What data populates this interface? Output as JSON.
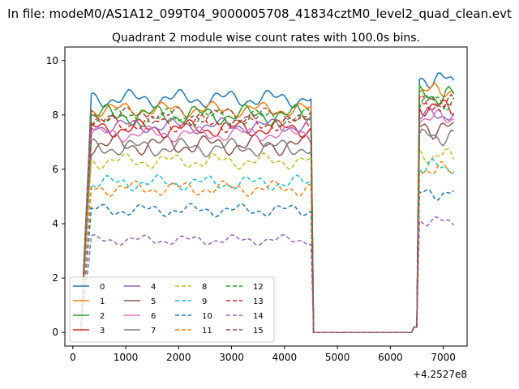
{
  "suptitle": "In file: modeM0/AS1A12_099T04_9000005708_41834cztM0_level2_quad_clean.evt",
  "chart_data": {
    "type": "line",
    "title": "Quadrant 2 module wise count rates with 100.0s bins.",
    "xlabel": "",
    "ylabel": "",
    "x_offset_label": "+4.2527e8",
    "xlim": [
      -150,
      7450
    ],
    "ylim": [
      -0.5,
      10.5
    ],
    "xticks": [
      0,
      1000,
      2000,
      3000,
      4000,
      5000,
      6000,
      7000
    ],
    "yticks": [
      0,
      2,
      4,
      6,
      8,
      10
    ],
    "grid": false,
    "legend": {
      "placement": "lower-left",
      "columns": 4
    },
    "shape": {
      "x_start": 150,
      "rise_end": 300,
      "high1_start": 350,
      "high1_end": 4500,
      "drop_end": 4650,
      "zero_end": 6400,
      "rise2_end": 6550,
      "high2_start": 6550,
      "x_end": 7200,
      "step": 50
    },
    "series": [
      {
        "name": "0",
        "color": "#1f77b4",
        "dashed": false,
        "level1": 8.6,
        "level2": 9.3,
        "amp": 0.35
      },
      {
        "name": "1",
        "color": "#ff7f0e",
        "dashed": false,
        "level1": 8.2,
        "level2": 8.9,
        "amp": 0.3
      },
      {
        "name": "2",
        "color": "#2ca02c",
        "dashed": false,
        "level1": 8.0,
        "level2": 8.7,
        "amp": 0.4
      },
      {
        "name": "3",
        "color": "#d62728",
        "dashed": false,
        "level1": 7.5,
        "level2": 8.3,
        "amp": 0.35
      },
      {
        "name": "4",
        "color": "#9467bd",
        "dashed": false,
        "level1": 7.6,
        "level2": 8.0,
        "amp": 0.3
      },
      {
        "name": "5",
        "color": "#8c564b",
        "dashed": false,
        "level1": 6.9,
        "level2": 7.5,
        "amp": 0.4
      },
      {
        "name": "6",
        "color": "#e377c2",
        "dashed": false,
        "level1": 7.3,
        "level2": 7.9,
        "amp": 0.3
      },
      {
        "name": "7",
        "color": "#7f7f7f",
        "dashed": false,
        "level1": 6.8,
        "level2": 7.2,
        "amp": 0.35
      },
      {
        "name": "8",
        "color": "#bcbd22",
        "dashed": true,
        "level1": 6.3,
        "level2": 6.5,
        "amp": 0.3
      },
      {
        "name": "9",
        "color": "#17becf",
        "dashed": true,
        "level1": 5.5,
        "level2": 6.1,
        "amp": 0.3
      },
      {
        "name": "10",
        "color": "#1f77b4",
        "dashed": true,
        "level1": 4.5,
        "level2": 5.1,
        "amp": 0.25
      },
      {
        "name": "11",
        "color": "#ff7f0e",
        "dashed": true,
        "level1": 5.3,
        "level2": 6.0,
        "amp": 0.3
      },
      {
        "name": "12",
        "color": "#2ca02c",
        "dashed": true,
        "level1": 7.9,
        "level2": 8.5,
        "amp": 0.35
      },
      {
        "name": "13",
        "color": "#d62728",
        "dashed": true,
        "level1": 7.7,
        "level2": 8.4,
        "amp": 0.35
      },
      {
        "name": "14",
        "color": "#9467bd",
        "dashed": true,
        "level1": 3.4,
        "level2": 4.1,
        "amp": 0.2
      },
      {
        "name": "15",
        "color": "#8c564b",
        "dashed": true,
        "level1": 8.0,
        "level2": 8.4,
        "amp": 0.3
      }
    ]
  }
}
